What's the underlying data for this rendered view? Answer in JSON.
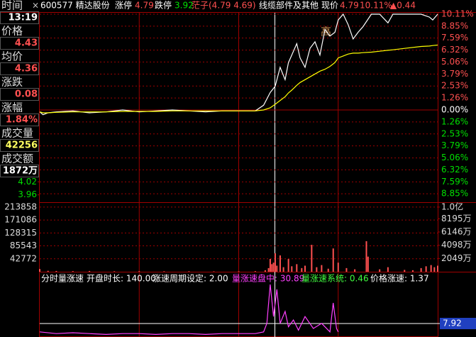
{
  "header": {
    "close": "×",
    "items": [
      {
        "text": "600577 精达股份",
        "color": "#ffffff"
      },
      {
        "text": "涨停",
        "color": "#ffffff"
      },
      {
        "text": "4.79",
        "color": "#ff5050"
      },
      {
        "text": "跌停",
        "color": "#ffffff"
      },
      {
        "text": "3.92",
        "color": "#00e000"
      },
      {
        "text": "茫子(4.79 4.69)",
        "color": "#ff5050"
      },
      {
        "text": "线缆部件及其他",
        "color": "#ffffff"
      },
      {
        "text": "现价",
        "color": "#ffffff"
      },
      {
        "text": "4.79",
        "color": "#ff5050"
      },
      {
        "text": "10.11%",
        "color": "#ff5050"
      },
      {
        "text": "▲0.44",
        "color": "#ff5050"
      }
    ]
  },
  "sidebar": [
    {
      "label": "时间",
      "value": "13:19",
      "color": "#ffffff"
    },
    {
      "label": "价格",
      "value": "4.43",
      "color": "#ff5050"
    },
    {
      "label": "均价",
      "value": "4.36",
      "color": "#ff5050"
    },
    {
      "label": "涨跌",
      "value": "0.08",
      "color": "#ff5050"
    },
    {
      "label": "涨幅",
      "value": "1.84%",
      "color": "#ff5050"
    },
    {
      "label": "成交量",
      "value": "42256",
      "color": "#ffff60"
    },
    {
      "label": "成交额",
      "value": "1872万",
      "color": "#ffffff"
    }
  ],
  "chart_data": [
    {
      "type": "line",
      "x": [
        0,
        2,
        5,
        10,
        20,
        30,
        40,
        50,
        60,
        70,
        80,
        90,
        100,
        110,
        120,
        130,
        135,
        139,
        142,
        145,
        148,
        150,
        152,
        155,
        157,
        160,
        163,
        166,
        169,
        172,
        175,
        178,
        180,
        183,
        186,
        189,
        192,
        195,
        200,
        205,
        210,
        213,
        220,
        230,
        235,
        237,
        240
      ],
      "xlim": [
        0,
        240
      ],
      "ylim": [
        -10.11,
        10.11
      ],
      "yticks": [
        {
          "value": 10.11,
          "label": "10.11%"
        },
        {
          "value": 8.85,
          "label": "8.85%"
        },
        {
          "value": 7.59,
          "label": "7.59%"
        },
        {
          "value": 6.32,
          "label": "6.32%"
        },
        {
          "value": 5.06,
          "label": "5.06%"
        },
        {
          "value": 3.79,
          "label": "3.79%"
        },
        {
          "value": 2.53,
          "label": "2.53%"
        },
        {
          "value": 1.26,
          "label": "1.26%"
        },
        {
          "value": 0,
          "label": "0.00%"
        },
        {
          "value": -1.26,
          "label": "1.26%"
        },
        {
          "value": -2.53,
          "label": "2.53%"
        },
        {
          "value": -3.79,
          "label": "3.79%"
        },
        {
          "value": -5.06,
          "label": "5.06%"
        },
        {
          "value": -6.32,
          "label": "6.32%"
        },
        {
          "value": -7.59,
          "label": "7.59%"
        },
        {
          "value": -8.85,
          "label": "8.85%"
        }
      ],
      "y2lim": [
        3.91,
        4.79
      ],
      "y2ticks": [
        4.02,
        3.96
      ],
      "grid": true,
      "annotations": [
        {
          "text": "高"
        }
      ],
      "series": [
        {
          "color": "#ffffff",
          "values": [
            -0.2,
            -0.5,
            -0.3,
            -0.2,
            -0.1,
            -0.3,
            -0.2,
            0,
            -0.2,
            -0.1,
            0,
            -0.1,
            -0.2,
            -0.1,
            -0.1,
            -0.1,
            0.5,
            1.84,
            2.5,
            4.5,
            3.2,
            5.0,
            5.8,
            7.0,
            5.5,
            4.5,
            6.5,
            7.2,
            5.8,
            8.5,
            7.8,
            8.2,
            9.5,
            10.11,
            9.0,
            7.5,
            8.2,
            8.8,
            10.11,
            10.11,
            9.2,
            10.11,
            10.11,
            10.11,
            9.8,
            9.5,
            10.11
          ]
        },
        {
          "color": "#ffff00",
          "values": [
            -0.2,
            -0.3,
            -0.3,
            -0.25,
            -0.2,
            -0.2,
            -0.2,
            -0.15,
            -0.15,
            -0.15,
            -0.1,
            -0.1,
            -0.1,
            -0.1,
            -0.1,
            -0.1,
            0,
            0.23,
            0.6,
            1.0,
            1.4,
            1.8,
            2.1,
            2.6,
            2.9,
            3.2,
            3.5,
            3.8,
            4.1,
            4.3,
            4.6,
            5.0,
            5.5,
            5.7,
            5.9,
            6.0,
            6.0,
            6.05,
            6.1,
            6.2,
            6.3,
            6.35,
            6.5,
            6.7,
            6.75,
            6.8,
            6.85
          ]
        }
      ]
    },
    {
      "type": "bar",
      "x": [
        0,
        5,
        10,
        20,
        30,
        45,
        60,
        75,
        90,
        105,
        120,
        130,
        136,
        138,
        139,
        140,
        141,
        142,
        143,
        145,
        147,
        150,
        152,
        155,
        158,
        160,
        164,
        167,
        170,
        174,
        177,
        180,
        185,
        190,
        197,
        198,
        205,
        210,
        220,
        225,
        230,
        233,
        236,
        238,
        240
      ],
      "xlim": [
        0,
        240
      ],
      "values": [
        9000,
        3000,
        2500,
        2000,
        2500,
        1500,
        2000,
        1500,
        1500,
        1200,
        1500,
        2000,
        5000,
        12000,
        42256,
        25000,
        30000,
        61000,
        20000,
        54000,
        15000,
        42000,
        18000,
        25000,
        12000,
        20000,
        89000,
        15000,
        22000,
        10000,
        77000,
        30000,
        12000,
        8000,
        101000,
        50000,
        8000,
        15000,
        6000,
        5000,
        12000,
        18000,
        22000,
        15000,
        20000
      ],
      "color": "#ff5050",
      "ylim": [
        0,
        230000
      ],
      "yticks": [
        213858,
        171086,
        128315,
        85543,
        42772
      ],
      "y2lim": [
        0,
        10755
      ],
      "y2ticks": [
        {
          "value": 10000,
          "label": "1.0亿"
        },
        {
          "value": 8195,
          "label": "8195万"
        },
        {
          "value": 6146,
          "label": "6146万"
        },
        {
          "value": 4098,
          "label": "4098万"
        },
        {
          "value": 2049,
          "label": "2049万"
        }
      ],
      "grid": true
    },
    {
      "type": "line",
      "title": "分时量涨速",
      "params": [
        {
          "text": "开盘时长: 140.00",
          "color": "#ffffff"
        },
        {
          "text": "涨速周期设定: 2.00",
          "color": "#ffffff"
        },
        {
          "text": "量涨速盘中: 30.89",
          "color": "#ff40ff"
        },
        {
          "text": "量涨速系统: 0.46",
          "color": "#40ff40"
        },
        {
          "text": "价格涨速: 1.37",
          "color": "#ffffff"
        }
      ],
      "x": [
        0,
        10,
        20,
        30,
        40,
        50,
        60,
        70,
        80,
        90,
        100,
        110,
        120,
        130,
        135,
        137,
        139,
        141,
        143,
        145,
        148,
        150,
        153,
        156,
        160,
        165,
        170,
        175,
        177,
        179,
        180
      ],
      "xlim": [
        0,
        240
      ],
      "ylim": [
        0,
        37.5
      ],
      "yticks": [
        7.92
      ],
      "series": [
        {
          "color": "#ff40ff",
          "values": [
            3,
            2,
            2.5,
            2,
            1.5,
            2,
            2,
            1.5,
            2,
            2,
            1.5,
            2,
            2,
            2,
            3,
            8,
            30.89,
            12,
            28,
            8,
            15,
            6,
            10,
            4,
            12,
            5,
            8,
            3,
            20,
            5,
            3
          ]
        }
      ]
    }
  ]
}
